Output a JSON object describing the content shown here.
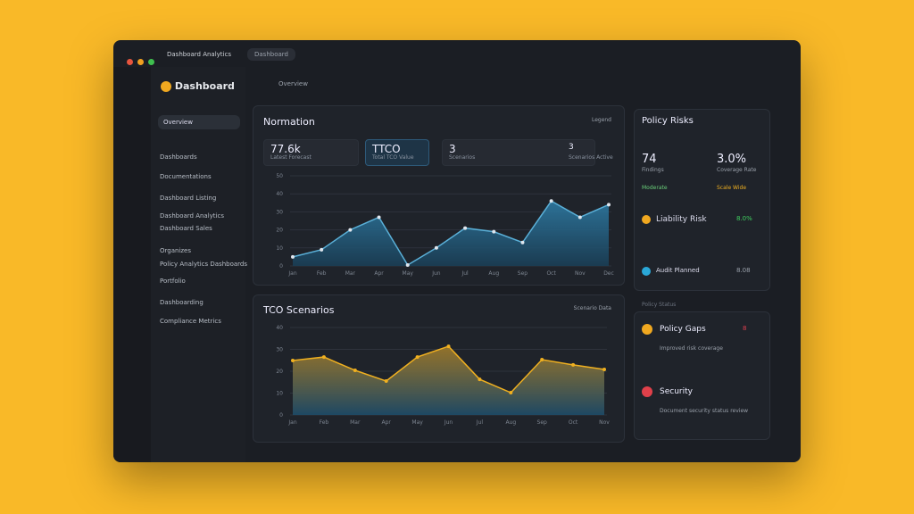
{
  "window": {
    "app_title": "Dashboard Analytics",
    "tab": "Dashboard"
  },
  "sidebar": {
    "brand": "Dashboard",
    "active": "Overview",
    "items": [
      "Dashboards",
      "Documentations",
      "Dashboard Listing",
      "Dashboard Analytics",
      "Dashboard Sales",
      "Organizes",
      "Policy Analytics Dashboards",
      "Portfolio",
      "Dashboarding",
      "Compliance Metrics"
    ]
  },
  "breadcrumb": "Overview",
  "kpis": [
    {
      "value": "77.6k",
      "label": "Latest Forecast"
    },
    {
      "value": "TTCO",
      "label": "Total TCO Value"
    },
    {
      "value": "3",
      "label": "Scenarios"
    },
    {
      "value": "3",
      "label": "Scenarios Active"
    }
  ],
  "chart_data": [
    {
      "type": "area",
      "title": "Normation",
      "legend": "Legend",
      "categories": [
        "Jan",
        "Feb",
        "Mar",
        "Apr",
        "May",
        "Jun",
        "Jul",
        "Aug",
        "Sep",
        "Oct",
        "Nov",
        "Dec"
      ],
      "series": [
        {
          "name": "Forecast",
          "color": "#5ab0d8",
          "values": [
            5,
            9,
            20,
            27,
            0.5,
            10,
            21,
            19,
            13,
            36,
            27,
            34
          ]
        }
      ],
      "ylim": [
        0,
        50
      ],
      "yticks": [
        0,
        10,
        20,
        30,
        40,
        50
      ],
      "grid": true
    },
    {
      "type": "area",
      "title": "TCO Scenarios",
      "legend": "Scenario Data",
      "categories": [
        "Jan",
        "Feb",
        "Mar",
        "Apr",
        "May",
        "Jun",
        "Jul",
        "Aug",
        "Sep",
        "Oct",
        "Nov"
      ],
      "series": [
        {
          "name": "TCO",
          "color": "#f0b020",
          "values": [
            24.9,
            26.5,
            20.4,
            15.5,
            26.5,
            31.4,
            16.3,
            10.2,
            25.3,
            22.9,
            20.8
          ]
        }
      ],
      "ylim": [
        0,
        40
      ],
      "yticks": [
        0,
        10,
        20,
        30,
        40
      ],
      "grid": true
    }
  ],
  "risk": {
    "title": "Policy Risks",
    "stats": [
      {
        "value": "74",
        "label": "Findings"
      },
      {
        "value": "3.0%",
        "label": "Coverage Rate"
      }
    ],
    "tags": [
      "Moderate",
      "Scale Wide"
    ],
    "items": [
      {
        "label": "Liability Risk",
        "value": "8.0%"
      },
      {
        "label": "Audit Planned",
        "value": "8.08"
      }
    ]
  },
  "gaps": {
    "caption": "Policy Status",
    "items": [
      {
        "label": "Policy Gaps",
        "value": "8",
        "note": "Improved risk coverage"
      },
      {
        "label": "Security",
        "value": "",
        "note": "Document security status review"
      }
    ]
  }
}
